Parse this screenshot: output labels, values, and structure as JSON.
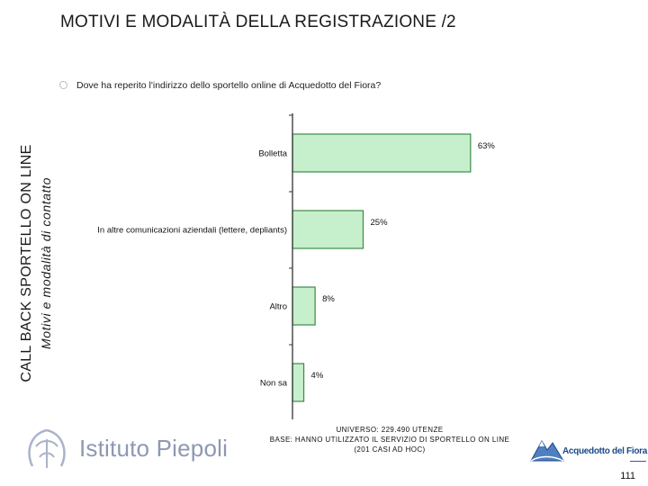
{
  "slide": {
    "title": "MOTIVI E MODALITÀ DELLA REGISTRAZIONE /2",
    "side_title": "CALL BACK SPORTELLO ON LINE",
    "side_subtitle": "Motivi e modalità di contatto",
    "question": "Dove ha reperito l'indirizzo dello sportello online di Acquedotto del Fiora?",
    "universe_lines": [
      "UNIVERSO: 229.490 UTENZE",
      "BASE: HANNO UTILIZZATO IL SERVIZIO DI SPORTELLO ON LINE",
      "(201 CASI AD HOC)"
    ],
    "page_number": "111",
    "logo_left_text": "Istituto Piepoli",
    "logo_right_text": "Acquedotto del Fiora"
  },
  "colors": {
    "bar_fill": "#c6efcb",
    "bar_border": "#3d8a4a",
    "axis": "#333333",
    "logo_left": "#8d98b2",
    "logo_right": "#1b4a8a"
  },
  "chart_data": {
    "type": "bar",
    "orientation": "horizontal",
    "categories": [
      "Bolletta",
      "In altre comunicazioni aziendali (lettere, depliants)",
      "Altro",
      "Non sa"
    ],
    "values": [
      63,
      25,
      8,
      4
    ],
    "value_labels": [
      "63%",
      "25%",
      "8%",
      "4%"
    ],
    "unit": "%",
    "xlim": [
      0,
      100
    ],
    "grid": false,
    "legend": "none"
  }
}
